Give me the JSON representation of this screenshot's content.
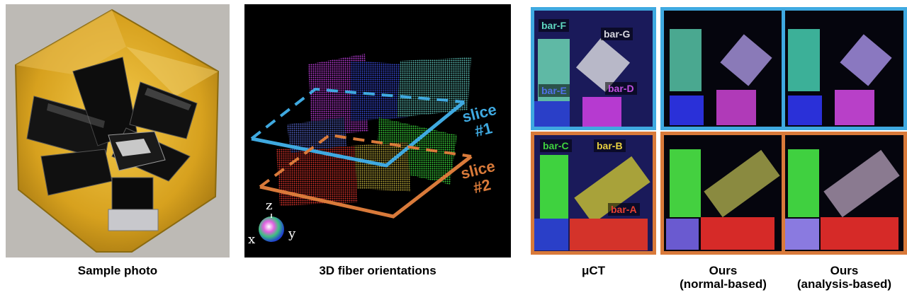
{
  "figure": {
    "captions": {
      "sample_photo": "Sample photo",
      "fiber_orientations": "3D fiber orientations",
      "muct": "μCT",
      "ours_normal": "Ours\n(normal-based)",
      "ours_normal_line1": "Ours",
      "ours_normal_line2": "(normal-based)",
      "ours_analysis_line1": "Ours",
      "ours_analysis_line2": "(analysis-based)"
    },
    "slice_labels": {
      "slice1_word": "slice",
      "slice1_num": "#1",
      "slice2_word": "slice",
      "slice2_num": "#2"
    },
    "axis_labels": {
      "x": "x",
      "y": "y",
      "z": "z"
    },
    "bar_labels": {
      "bar_f": "bar-F",
      "bar_g": "bar-G",
      "bar_e": "bar-E",
      "bar_d": "bar-D",
      "bar_c": "bar-C",
      "bar_b": "bar-B",
      "bar_a": "bar-A"
    },
    "colors": {
      "slice1_border": "#3fa9e0",
      "slice2_border": "#d97a3a",
      "bar_f": "#5fb9a5",
      "bar_g": "#b8b8c8",
      "bar_e": "#2a3fc8",
      "bar_d": "#b63ad0",
      "bar_c": "#3fd23f",
      "bar_b": "#a8a23a",
      "bar_a": "#d4332a"
    }
  }
}
